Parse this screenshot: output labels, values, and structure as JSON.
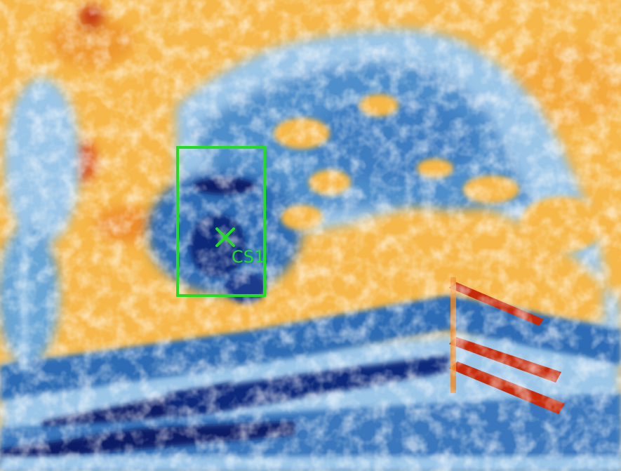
{
  "image": {
    "kind": "false-color thermal / heatmap image",
    "palette": {
      "cold_dark": "#0b1f66",
      "cold": "#1f5fa8",
      "cool": "#6aa6d6",
      "neutral": "#f7fbff",
      "warm": "#f7c04a",
      "hot": "#f08a24",
      "very_hot": "#c62a0a"
    }
  },
  "annotation": {
    "region_color": "#22dd22",
    "marker": {
      "icon": "x-cross-marker",
      "label": "CS1",
      "color": "#22dd22"
    }
  }
}
